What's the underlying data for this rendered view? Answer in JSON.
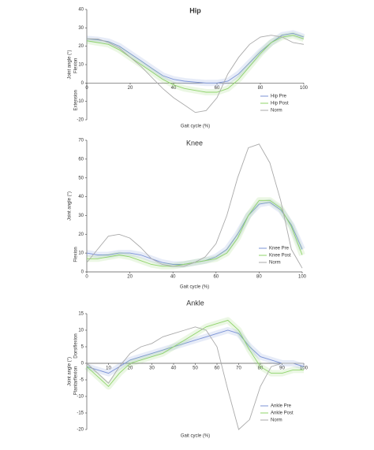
{
  "chart_data": [
    {
      "type": "line",
      "title": "Hip",
      "x_label": "Gait cycle (%)",
      "y_label": "Joint angle (°)",
      "y_upper_label": "Flexion",
      "y_lower_label": "Extension",
      "x": [
        0,
        5,
        10,
        15,
        20,
        25,
        30,
        35,
        40,
        45,
        50,
        55,
        60,
        65,
        70,
        75,
        80,
        85,
        90,
        95,
        100
      ],
      "xlim": [
        0,
        100
      ],
      "xticks": [
        0,
        20,
        40,
        60,
        80,
        100
      ],
      "ylim": [
        -20,
        40
      ],
      "yticks": [
        -20,
        -10,
        0,
        10,
        20,
        30,
        40
      ],
      "legend": "lower-right",
      "series": [
        {
          "name": "Hip Pre",
          "color": "#7b93d6",
          "values": [
            24,
            23.5,
            22.5,
            20,
            16,
            12,
            8,
            4,
            2,
            1,
            0.5,
            0,
            0,
            1,
            5,
            11,
            17,
            22,
            26,
            27,
            25
          ]
        },
        {
          "name": "Hip Post",
          "color": "#8fd46a",
          "values": [
            23,
            22,
            21,
            18,
            14,
            10,
            6,
            2,
            -1,
            -3,
            -4,
            -5,
            -5,
            -3,
            2,
            9,
            16,
            22,
            25,
            26,
            24
          ]
        },
        {
          "name": "Norm",
          "color": "#aaaaaa",
          "values": [
            24,
            24,
            22,
            19,
            14,
            9,
            3,
            -3,
            -8,
            -12,
            -16,
            -15,
            -8,
            5,
            14,
            21,
            25,
            26,
            25,
            22,
            21
          ]
        }
      ]
    },
    {
      "type": "line",
      "title": "Knee",
      "x_label": "Gait cycle (%)",
      "y_label": "Joint angle (°)",
      "y_upper_label": "Flexion",
      "x": [
        0,
        5,
        10,
        15,
        20,
        25,
        30,
        35,
        40,
        45,
        50,
        55,
        60,
        65,
        70,
        75,
        80,
        85,
        90,
        95,
        100
      ],
      "xlim": [
        0,
        100
      ],
      "xticks": [
        0,
        20,
        40,
        60,
        80,
        100
      ],
      "ylim": [
        0,
        70
      ],
      "yticks": [
        0,
        10,
        20,
        30,
        40,
        50,
        60,
        70
      ],
      "legend": "lower-right",
      "series": [
        {
          "name": "Knee Pre",
          "color": "#7b93d6",
          "values": [
            10,
            9,
            9,
            10,
            10,
            9,
            7,
            5,
            4,
            4,
            5,
            6,
            8,
            12,
            20,
            30,
            36,
            37,
            33,
            25,
            12
          ]
        },
        {
          "name": "Knee Post",
          "color": "#8fd46a",
          "values": [
            7,
            7,
            8,
            9,
            8,
            6,
            4,
            3,
            3,
            4,
            5,
            6,
            7,
            10,
            18,
            30,
            38,
            38,
            34,
            24,
            9
          ]
        },
        {
          "name": "Norm",
          "color": "#aaaaaa",
          "values": [
            5,
            12,
            19,
            20,
            18,
            13,
            7,
            4,
            3,
            3,
            5,
            8,
            15,
            30,
            50,
            66,
            68,
            58,
            38,
            12,
            2
          ]
        }
      ]
    },
    {
      "type": "line",
      "title": "Ankle",
      "x_label": "Gait cycle (%)",
      "y_label": "Joint angle (°)",
      "y_upper_label": "Dorsiflexion",
      "y_lower_label": "Plantarflexion",
      "x": [
        0,
        5,
        10,
        15,
        20,
        25,
        30,
        35,
        40,
        45,
        50,
        55,
        60,
        65,
        70,
        75,
        80,
        85,
        90,
        95,
        100
      ],
      "xlim": [
        0,
        100
      ],
      "xticks": [
        10,
        20,
        30,
        40,
        50,
        60,
        70,
        80,
        90,
        100
      ],
      "ylim": [
        -20,
        15
      ],
      "yticks": [
        -20,
        -15,
        -10,
        -5,
        0,
        5,
        10,
        15
      ],
      "legend": "lower-right",
      "series": [
        {
          "name": "Ankle Pre",
          "color": "#7b93d6",
          "values": [
            -1,
            -2,
            -3,
            -1,
            1,
            2,
            3,
            4,
            5,
            6,
            7,
            8,
            9,
            10,
            9,
            5,
            2,
            1,
            0,
            0,
            -1
          ]
        },
        {
          "name": "Ankle Post",
          "color": "#8fd46a",
          "values": [
            -1,
            -4,
            -7,
            -3,
            0,
            1,
            2,
            3,
            5,
            7,
            9,
            11,
            12,
            13,
            10,
            4,
            -1,
            -3,
            -3,
            -2,
            -2
          ]
        },
        {
          "name": "Norm",
          "color": "#aaaaaa",
          "values": [
            0,
            -3,
            -6,
            -1,
            3,
            5,
            6,
            8,
            9,
            10,
            11,
            10,
            5,
            -8,
            -20,
            -17,
            -7,
            -1,
            0,
            0,
            0
          ]
        }
      ]
    }
  ]
}
